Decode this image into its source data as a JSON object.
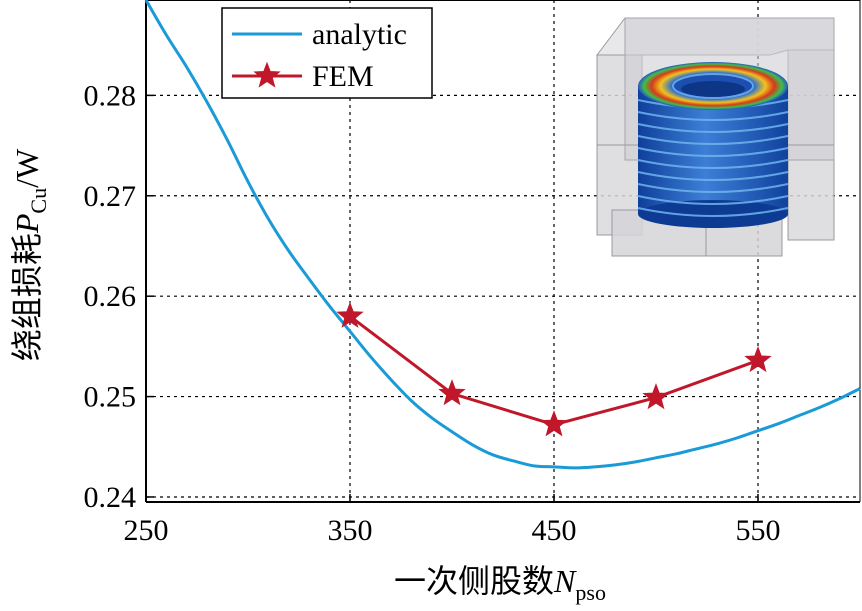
{
  "chart_data": {
    "type": "line",
    "title": "",
    "xlabel_main": "一次侧股数",
    "xlabel_symbol": "N",
    "xlabel_subscript": "pso",
    "ylabel_main": "绕组损耗",
    "ylabel_symbol": "P",
    "ylabel_subscript": "Cu",
    "ylabel_unit": "/W",
    "xlim": [
      250,
      600
    ],
    "ylim": [
      0.2395,
      0.2895
    ],
    "xticks": [
      250,
      350,
      450,
      550
    ],
    "xtick_labels": [
      "250",
      "350",
      "450",
      "550"
    ],
    "gridx": [
      250,
      350,
      450,
      550
    ],
    "yticks": [
      0.24,
      0.25,
      0.26,
      0.27,
      0.28
    ],
    "ytick_labels": [
      "0.24",
      "0.25",
      "0.26",
      "0.27",
      "0.28"
    ],
    "grid": true,
    "legend_position": "top-left",
    "series": [
      {
        "name": "analytic",
        "color": "#1a9ad6",
        "marker": "none",
        "x": [
          250,
          260,
          270,
          280,
          290,
          300,
          310,
          320,
          330,
          340,
          350,
          360,
          370,
          380,
          390,
          400,
          410,
          420,
          430,
          440,
          450,
          460,
          470,
          480,
          490,
          500,
          510,
          520,
          530,
          540,
          550,
          560,
          570,
          580,
          590,
          600
        ],
        "y": [
          0.2895,
          0.286,
          0.2828,
          0.2793,
          0.2755,
          0.2714,
          0.2677,
          0.2645,
          0.2617,
          0.259,
          0.2565,
          0.254,
          0.2517,
          0.2496,
          0.2479,
          0.2465,
          0.2452,
          0.2442,
          0.2436,
          0.2431,
          0.243,
          0.2429,
          0.243,
          0.2432,
          0.2435,
          0.2439,
          0.2443,
          0.2448,
          0.2453,
          0.2459,
          0.2466,
          0.2473,
          0.2481,
          0.2489,
          0.2498,
          0.2508
        ]
      },
      {
        "name": "FEM",
        "color": "#c0182a",
        "marker": "star",
        "x": [
          350,
          400,
          450,
          500,
          550
        ],
        "y": [
          0.258,
          0.2503,
          0.2472,
          0.2499,
          0.2536
        ]
      }
    ],
    "inset": "3D FEM winding loss distribution"
  }
}
